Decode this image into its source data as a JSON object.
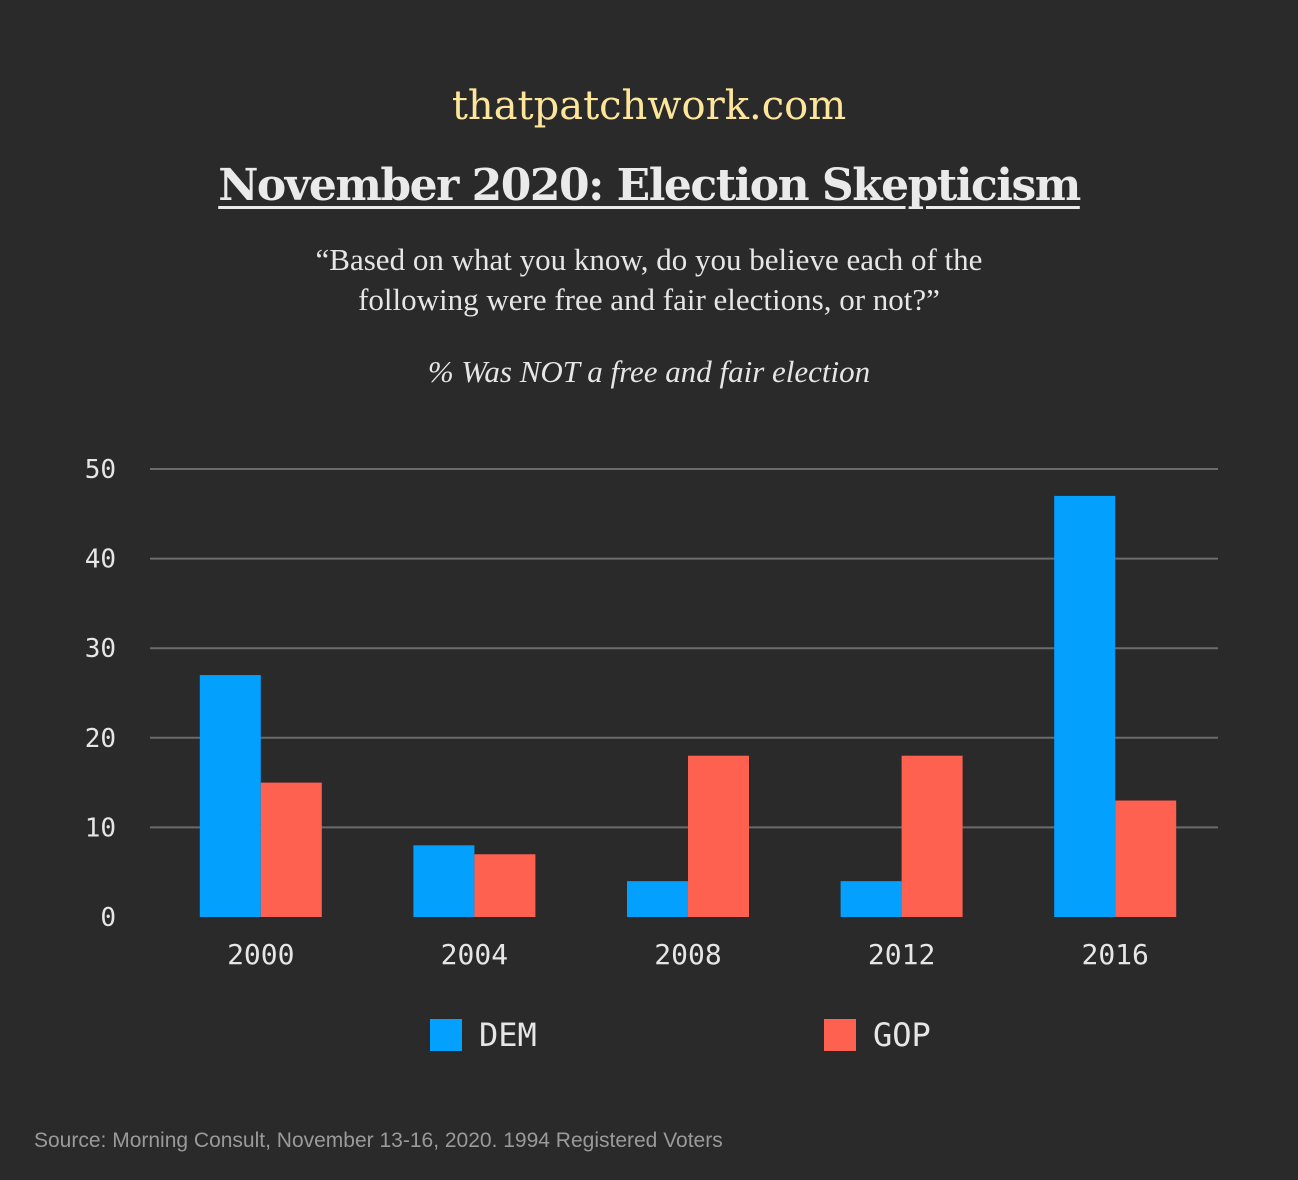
{
  "header": {
    "site": "thatpatchwork.com",
    "title": "November 2020: Election Skepticism",
    "question_line1": "“Based on what you know, do you believe each of the",
    "question_line2": "following were free and fair elections, or not?”",
    "measure": "% Was NOT a free and fair election"
  },
  "footer": {
    "source": "Source: Morning Consult, November 13-16, 2020. 1994 Registered Voters"
  },
  "chart_data": {
    "type": "bar",
    "title": "November 2020: Election Skepticism",
    "xlabel": "",
    "ylabel": "% Was NOT a free and fair election",
    "categories": [
      "2000",
      "2004",
      "2008",
      "2012",
      "2016"
    ],
    "series": [
      {
        "name": "DEM",
        "color": "#03a0fd",
        "values": [
          27,
          8,
          4,
          4,
          47
        ]
      },
      {
        "name": "GOP",
        "color": "#ff6150",
        "values": [
          15,
          7,
          18,
          18,
          13
        ]
      }
    ],
    "ylim": [
      0,
      50
    ],
    "yticks": [
      0,
      10,
      20,
      30,
      40,
      50
    ],
    "grid": true,
    "legend_position": "bottom-center"
  },
  "colors": {
    "background": "#2a2a2a",
    "gridline": "#6b6b6b",
    "site_accent": "#fde59a"
  }
}
